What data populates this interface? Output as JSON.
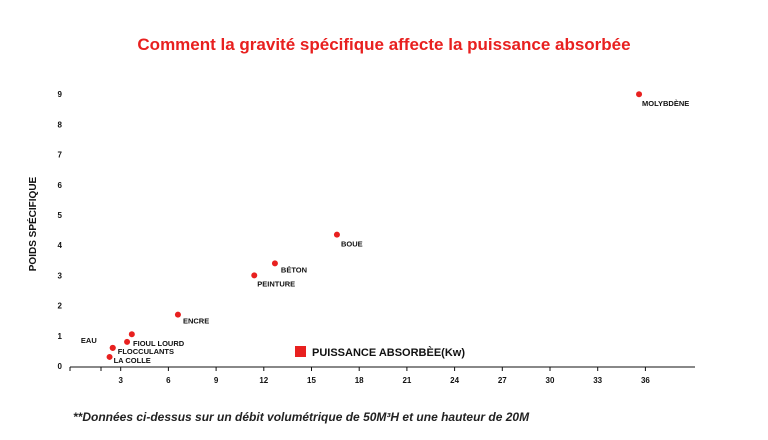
{
  "chart_data": {
    "type": "scatter",
    "title": "Comment la gravité spécifique affecte la puissance absorbée",
    "xlabel": "",
    "ylabel": "POIDS SPÉCIFIQUE",
    "x_ticks": [
      "3",
      "6",
      "9",
      "12",
      "15",
      "18",
      "21",
      "24",
      "27",
      "30",
      "33",
      "36"
    ],
    "y_ticks": [
      "0",
      "1",
      "2",
      "3",
      "4",
      "5",
      "6",
      "7",
      "8",
      "9"
    ],
    "xlim": [
      0,
      40
    ],
    "ylim": [
      0,
      9.6
    ],
    "grid": false,
    "legend": {
      "position": "bottom-center",
      "label": "PUISSANCE ABSORBÈE(Kw)",
      "marker": "square"
    },
    "series": [
      {
        "name": "PUISSANCE ABSORBÈE(Kw)",
        "color": "#e8201f",
        "points": [
          {
            "label": "EAU",
            "x": 2.5,
            "y": 0.6
          },
          {
            "label": "LA COLLE",
            "x": 2.3,
            "y": 0.3
          },
          {
            "label": "FLOCCULANTS",
            "x": 2.5,
            "y": 0.6
          },
          {
            "label": "FIOUL LOURD",
            "x": 3.4,
            "y": 0.8
          },
          {
            "label": "",
            "x": 3.7,
            "y": 1.05
          },
          {
            "label": "ENCRE",
            "x": 6.6,
            "y": 1.7
          },
          {
            "label": "PEINTURE",
            "x": 11.4,
            "y": 3.0
          },
          {
            "label": "BÉTON",
            "x": 12.7,
            "y": 3.4
          },
          {
            "label": "BOUE",
            "x": 16.6,
            "y": 4.35
          },
          {
            "label": "MOLYBDÈNE",
            "x": 35.6,
            "y": 9.0
          }
        ]
      }
    ]
  },
  "footnote": "**Données ci-dessus sur un débit volumétrique de 50M³H et une hauteur de 20M"
}
